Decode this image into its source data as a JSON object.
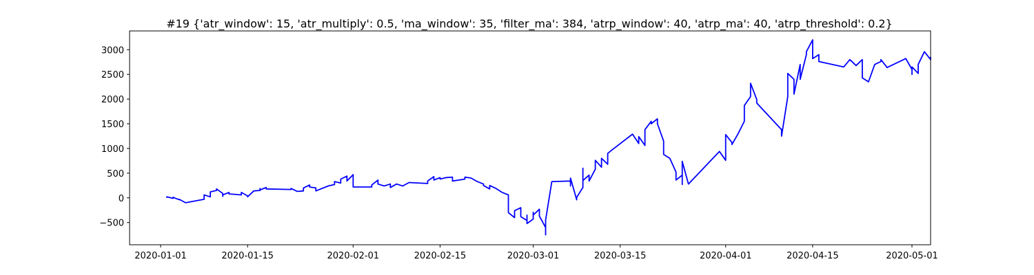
{
  "chart_data": {
    "type": "line",
    "title": "#19 {'atr_window': 15, 'atr_multiply': 0.5, 'ma_window': 35, 'filter_ma': 384, 'atrp_window': 40, 'atrp_ma': 40, 'atrp_threshold': 0.2}",
    "xlabel": "",
    "ylabel": "",
    "x_axis": "date",
    "xlim": [
      "2019-12-27",
      "2020-05-04"
    ],
    "ylim": [
      -950,
      3380
    ],
    "grid": false,
    "legend": "none",
    "line_color": "#0000ff",
    "x_ticks": [
      "2020-01-01",
      "2020-01-15",
      "2020-02-01",
      "2020-02-15",
      "2020-03-01",
      "2020-03-15",
      "2020-04-01",
      "2020-04-15",
      "2020-05-01"
    ],
    "y_ticks": [
      -500,
      0,
      500,
      1000,
      1500,
      2000,
      2500,
      3000
    ],
    "series": [
      {
        "name": "",
        "color": "#0000ff",
        "points": [
          [
            "2020-01-02",
            0
          ],
          [
            "2020-01-02",
            20
          ],
          [
            "2020-01-03",
            -10
          ],
          [
            "2020-01-03",
            10
          ],
          [
            "2020-01-04",
            -40
          ],
          [
            "2020-01-04",
            -30
          ],
          [
            "2020-01-05",
            -100
          ],
          [
            "2020-01-08",
            -30
          ],
          [
            "2020-01-08",
            60
          ],
          [
            "2020-01-09",
            20
          ],
          [
            "2020-01-09",
            120
          ],
          [
            "2020-01-10",
            150
          ],
          [
            "2020-01-10",
            180
          ],
          [
            "2020-01-11",
            90
          ],
          [
            "2020-01-11",
            30
          ],
          [
            "2020-01-11",
            60
          ],
          [
            "2020-01-12",
            110
          ],
          [
            "2020-01-12",
            80
          ],
          [
            "2020-01-14",
            60
          ],
          [
            "2020-01-14",
            110
          ],
          [
            "2020-01-15",
            40
          ],
          [
            "2020-01-15",
            20
          ],
          [
            "2020-01-16",
            140
          ],
          [
            "2020-01-17",
            150
          ],
          [
            "2020-01-17",
            190
          ],
          [
            "2020-01-17",
            160
          ],
          [
            "2020-01-18",
            210
          ],
          [
            "2020-01-18",
            180
          ],
          [
            "2020-01-22",
            170
          ],
          [
            "2020-01-22",
            190
          ],
          [
            "2020-01-23",
            130
          ],
          [
            "2020-01-24",
            140
          ],
          [
            "2020-01-24",
            200
          ],
          [
            "2020-01-25",
            260
          ],
          [
            "2020-01-25",
            220
          ],
          [
            "2020-01-26",
            200
          ],
          [
            "2020-01-26",
            140
          ],
          [
            "2020-01-28",
            240
          ],
          [
            "2020-01-29",
            270
          ],
          [
            "2020-01-29",
            330
          ],
          [
            "2020-01-30",
            300
          ],
          [
            "2020-01-30",
            380
          ],
          [
            "2020-01-31",
            440
          ],
          [
            "2020-01-31",
            340
          ],
          [
            "2020-02-01",
            470
          ],
          [
            "2020-02-01",
            320
          ],
          [
            "2020-02-01",
            220
          ],
          [
            "2020-02-04",
            220
          ],
          [
            "2020-02-04",
            260
          ],
          [
            "2020-02-05",
            360
          ],
          [
            "2020-02-05",
            280
          ],
          [
            "2020-02-06",
            240
          ],
          [
            "2020-02-07",
            280
          ],
          [
            "2020-02-07",
            210
          ],
          [
            "2020-02-08",
            280
          ],
          [
            "2020-02-09",
            240
          ],
          [
            "2020-02-10",
            310
          ],
          [
            "2020-02-13",
            290
          ],
          [
            "2020-02-13",
            340
          ],
          [
            "2020-02-14",
            430
          ],
          [
            "2020-02-14",
            360
          ],
          [
            "2020-02-15",
            410
          ],
          [
            "2020-02-15",
            380
          ],
          [
            "2020-02-16",
            410
          ],
          [
            "2020-02-17",
            420
          ],
          [
            "2020-02-17",
            340
          ],
          [
            "2020-02-19",
            380
          ],
          [
            "2020-02-19",
            420
          ],
          [
            "2020-02-20",
            400
          ],
          [
            "2020-02-21",
            330
          ],
          [
            "2020-02-22",
            280
          ],
          [
            "2020-02-22",
            250
          ],
          [
            "2020-02-23",
            180
          ],
          [
            "2020-02-23",
            250
          ],
          [
            "2020-02-24",
            190
          ],
          [
            "2020-02-25",
            110
          ],
          [
            "2020-02-26",
            60
          ],
          [
            "2020-02-26",
            -110
          ],
          [
            "2020-02-26",
            -300
          ],
          [
            "2020-02-27",
            -400
          ],
          [
            "2020-02-27",
            -260
          ],
          [
            "2020-02-28",
            -200
          ],
          [
            "2020-02-28",
            -380
          ],
          [
            "2020-02-29",
            -460
          ],
          [
            "2020-02-29",
            -500
          ],
          [
            "2020-02-29",
            -350
          ],
          [
            "2020-02-29",
            -520
          ],
          [
            "2020-03-01",
            -430
          ],
          [
            "2020-03-01",
            -290
          ],
          [
            "2020-03-01",
            -350
          ],
          [
            "2020-03-02",
            -230
          ],
          [
            "2020-03-02",
            -370
          ],
          [
            "2020-03-03",
            -600
          ],
          [
            "2020-03-03",
            -750
          ],
          [
            "2020-03-03",
            -580
          ],
          [
            "2020-03-03",
            -450
          ],
          [
            "2020-03-04",
            330
          ],
          [
            "2020-03-07",
            340
          ],
          [
            "2020-03-07",
            240
          ],
          [
            "2020-03-07",
            400
          ],
          [
            "2020-03-08",
            -40
          ],
          [
            "2020-03-08",
            10
          ],
          [
            "2020-03-09",
            210
          ],
          [
            "2020-03-09",
            600
          ],
          [
            "2020-03-09",
            350
          ],
          [
            "2020-03-10",
            460
          ],
          [
            "2020-03-10",
            340
          ],
          [
            "2020-03-11",
            580
          ],
          [
            "2020-03-11",
            760
          ],
          [
            "2020-03-12",
            620
          ],
          [
            "2020-03-12",
            800
          ],
          [
            "2020-03-13",
            680
          ],
          [
            "2020-03-13",
            900
          ],
          [
            "2020-03-14",
            1000
          ],
          [
            "2020-03-17",
            1290
          ],
          [
            "2020-03-18",
            1100
          ],
          [
            "2020-03-18",
            1240
          ],
          [
            "2020-03-19",
            1060
          ],
          [
            "2020-03-19",
            1380
          ],
          [
            "2020-03-20",
            1550
          ],
          [
            "2020-03-20",
            1500
          ],
          [
            "2020-03-21",
            1600
          ],
          [
            "2020-03-21",
            1500
          ],
          [
            "2020-03-22",
            1150
          ],
          [
            "2020-03-22",
            880
          ],
          [
            "2020-03-23",
            800
          ],
          [
            "2020-03-24",
            520
          ],
          [
            "2020-03-24",
            360
          ],
          [
            "2020-03-25",
            460
          ],
          [
            "2020-03-25",
            270
          ],
          [
            "2020-03-25",
            740
          ],
          [
            "2020-03-26",
            280
          ],
          [
            "2020-03-31",
            940
          ],
          [
            "2020-04-01",
            760
          ],
          [
            "2020-04-01",
            1280
          ],
          [
            "2020-04-02",
            1120
          ],
          [
            "2020-04-02",
            1080
          ],
          [
            "2020-04-03",
            1300
          ],
          [
            "2020-04-04",
            1550
          ],
          [
            "2020-04-04",
            1870
          ],
          [
            "2020-04-05",
            2050
          ],
          [
            "2020-04-05",
            2320
          ],
          [
            "2020-04-06",
            1990
          ],
          [
            "2020-04-06",
            1920
          ],
          [
            "2020-04-10",
            1380
          ],
          [
            "2020-04-10",
            1250
          ],
          [
            "2020-04-11",
            2050
          ],
          [
            "2020-04-11",
            2520
          ],
          [
            "2020-04-12",
            2400
          ],
          [
            "2020-04-12",
            2100
          ],
          [
            "2020-04-13",
            2700
          ],
          [
            "2020-04-13",
            2400
          ],
          [
            "2020-04-14",
            2900
          ],
          [
            "2020-04-14",
            2960
          ],
          [
            "2020-04-15",
            3200
          ],
          [
            "2020-04-15",
            2820
          ],
          [
            "2020-04-16",
            2900
          ],
          [
            "2020-04-16",
            2760
          ],
          [
            "2020-04-20",
            2650
          ],
          [
            "2020-04-21",
            2800
          ],
          [
            "2020-04-22",
            2680
          ],
          [
            "2020-04-23",
            2800
          ],
          [
            "2020-04-23",
            2430
          ],
          [
            "2020-04-24",
            2350
          ],
          [
            "2020-04-25",
            2700
          ],
          [
            "2020-04-26",
            2760
          ],
          [
            "2020-04-26",
            2800
          ],
          [
            "2020-04-27",
            2640
          ],
          [
            "2020-04-30",
            2820
          ],
          [
            "2020-05-01",
            2600
          ],
          [
            "2020-05-01",
            2500
          ],
          [
            "2020-05-01",
            2650
          ],
          [
            "2020-05-02",
            2520
          ],
          [
            "2020-05-02",
            2700
          ],
          [
            "2020-05-03",
            2960
          ],
          [
            "2020-05-04",
            2800
          ],
          [
            "2020-05-04",
            2850
          ],
          [
            "2020-05-04",
            2800
          ]
        ]
      }
    ]
  }
}
